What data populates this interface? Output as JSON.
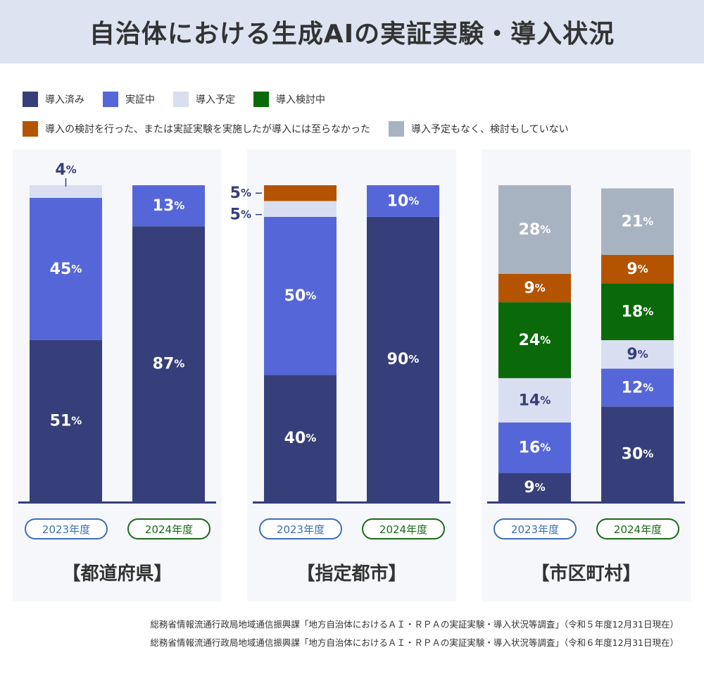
{
  "title": "自治体における生成AIの実証実験・導入状況",
  "legend": [
    {
      "label": "導入済み",
      "color": "#363f7a"
    },
    {
      "label": "実証中",
      "color": "#5567d8"
    },
    {
      "label": "導入予定",
      "color": "#d9dff0"
    },
    {
      "label": "導入検討中",
      "color": "#0a6a0a"
    },
    {
      "label": "導入の検討を行った、または実証実験を実施したが導入には至らなかった",
      "color": "#b55400"
    },
    {
      "label": "導入予定もなく、検討もしていない",
      "color": "#a8b3c2"
    }
  ],
  "chart_data": [
    {
      "type": "bar",
      "stacked": true,
      "group": "【都道府県】",
      "categories": [
        "2023年度",
        "2024年度"
      ],
      "series": [
        {
          "name": "導入済み",
          "values": [
            51,
            87
          ]
        },
        {
          "name": "実証中",
          "values": [
            45,
            13
          ]
        },
        {
          "name": "導入予定",
          "values": [
            4,
            0
          ]
        },
        {
          "name": "導入検討中",
          "values": [
            0,
            0
          ]
        },
        {
          "name": "導入の検討を行った、または実証実験を実施したが導入には至らなかった",
          "values": [
            0,
            0
          ]
        },
        {
          "name": "導入予定もなく、検討もしていない",
          "values": [
            0,
            0
          ]
        }
      ],
      "ylim": [
        0,
        100
      ]
    },
    {
      "type": "bar",
      "stacked": true,
      "group": "【指定都市】",
      "categories": [
        "2023年度",
        "2024年度"
      ],
      "series": [
        {
          "name": "導入済み",
          "values": [
            40,
            90
          ]
        },
        {
          "name": "実証中",
          "values": [
            50,
            10
          ]
        },
        {
          "name": "導入予定",
          "values": [
            5,
            0
          ]
        },
        {
          "name": "導入検討中",
          "values": [
            0,
            0
          ]
        },
        {
          "name": "導入の検討を行った、または実証実験を実施したが導入には至らなかった",
          "values": [
            5,
            0
          ]
        },
        {
          "name": "導入予定もなく、検討もしていない",
          "values": [
            0,
            0
          ]
        }
      ],
      "ylim": [
        0,
        100
      ]
    },
    {
      "type": "bar",
      "stacked": true,
      "group": "【市区町村】",
      "categories": [
        "2023年度",
        "2024年度"
      ],
      "series": [
        {
          "name": "導入済み",
          "values": [
            9,
            30
          ]
        },
        {
          "name": "実証中",
          "values": [
            16,
            12
          ]
        },
        {
          "name": "導入予定",
          "values": [
            14,
            9
          ]
        },
        {
          "name": "導入検討中",
          "values": [
            24,
            18
          ]
        },
        {
          "name": "導入の検討を行った、または実証実験を実施したが導入には至らなかった",
          "values": [
            9,
            9
          ]
        },
        {
          "name": "導入予定もなく、検討もしていない",
          "values": [
            28,
            21
          ]
        }
      ],
      "ylim": [
        0,
        100
      ]
    }
  ],
  "percent_suffix": "%",
  "sources": [
    "総務省情報流通行政局地域通信振興課「地方自治体におけるＡＩ・ＲＰＡの実証実験・導入状況等調査」（令和５年度12月31日現在）",
    "総務省情報流通行政局地域通信振興課「地方自治体におけるＡＩ・ＲＰＡの実証実験・導入状況等調査」（令和６年度12月31日現在）"
  ]
}
